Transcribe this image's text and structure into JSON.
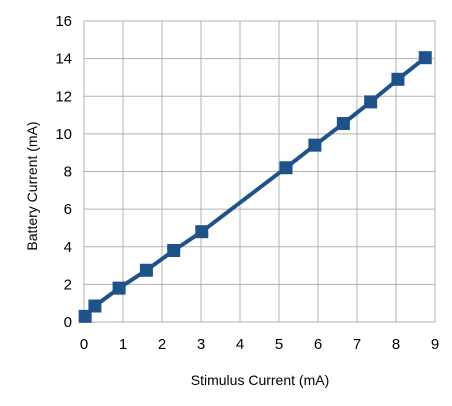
{
  "chart_data": {
    "type": "line",
    "xlabel": "Stimulus Current (mA)",
    "ylabel": "Battery Current (mA)",
    "xlim": [
      0,
      9
    ],
    "ylim": [
      0,
      16
    ],
    "xticks": [
      0,
      1,
      2,
      3,
      4,
      5,
      6,
      7,
      8,
      9
    ],
    "yticks": [
      0,
      2,
      4,
      6,
      8,
      10,
      12,
      14,
      16
    ],
    "grid": true,
    "legend": "none",
    "marker": "square",
    "series_color": "#1f5289",
    "grid_color": "#b3b3b3",
    "series": [
      {
        "x": [
          0.03,
          0.28,
          0.9,
          1.6,
          2.3,
          3.02,
          5.18,
          5.92,
          6.65,
          7.35,
          8.05,
          8.75
        ],
        "y": [
          0.3,
          0.85,
          1.8,
          2.75,
          3.8,
          4.8,
          8.2,
          9.4,
          10.55,
          11.7,
          12.9,
          14.05
        ]
      }
    ]
  }
}
